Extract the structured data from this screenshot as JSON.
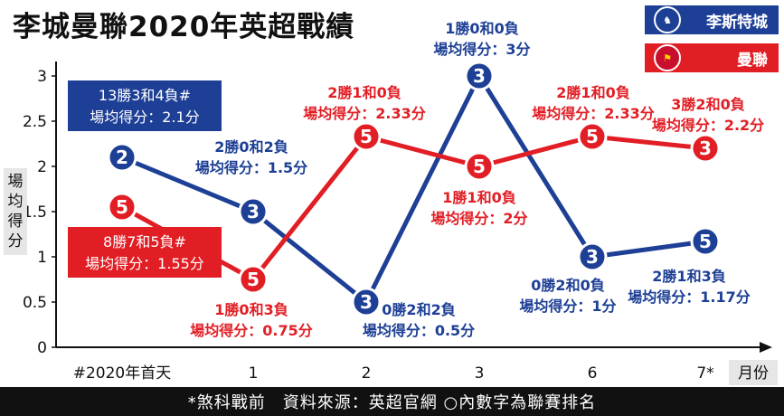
{
  "title": "李城曼聯2020年英超戰績",
  "legend": [
    {
      "label": "李斯特城",
      "color": "#1d3f95",
      "icon": "leicester-crest-icon"
    },
    {
      "label": "曼聯",
      "color": "#e21e25",
      "icon": "man-united-crest-icon"
    }
  ],
  "footer": "*煞科戰前　資料來源：英超官網 ○內數字為聯賽排名",
  "chart_data": {
    "type": "line",
    "categories": [
      "#2020年首天",
      "1",
      "2",
      "3",
      "6",
      "7*"
    ],
    "xlabel": "月份",
    "ylabel": "場均得分",
    "ylim": [
      0,
      3
    ],
    "yticks": [
      "0",
      "0.5",
      "1",
      "1.5",
      "2",
      "2.5",
      "3"
    ],
    "grid": false,
    "series": [
      {
        "name": "李斯特城",
        "color": "#1d3f95",
        "values": [
          2.1,
          1.5,
          0.5,
          3,
          1,
          1.17
        ],
        "ranks": [
          "2",
          "3",
          "3",
          "3",
          "3",
          "5"
        ],
        "labels": [
          [
            "13勝3和4負#",
            "場均得分：2.1分"
          ],
          [
            "2勝0和2負",
            "場均得分：1.5分"
          ],
          [
            "0勝2和2負",
            "場均得分：0.5分"
          ],
          [
            "1勝0和0負",
            "場均得分：3分"
          ],
          [
            "0勝2和0負",
            "場均得分：1分"
          ],
          [
            "2勝1和3負",
            "場均得分：1.17分"
          ]
        ]
      },
      {
        "name": "曼聯",
        "color": "#e21e25",
        "values": [
          1.55,
          0.75,
          2.33,
          2,
          2.33,
          2.2
        ],
        "ranks": [
          "5",
          "5",
          "5",
          "5",
          "5",
          "3"
        ],
        "labels": [
          [
            "8勝7和5負#",
            "場均得分：1.55分"
          ],
          [
            "1勝0和3負",
            "場均得分：0.75分"
          ],
          [
            "2勝1和0負",
            "場均得分：2.33分"
          ],
          [
            "1勝1和0負",
            "場均得分：2分"
          ],
          [
            "2勝1和0負",
            "場均得分：2.33分"
          ],
          [
            "3勝2和0負",
            "場均得分：2.2分"
          ]
        ]
      }
    ]
  }
}
